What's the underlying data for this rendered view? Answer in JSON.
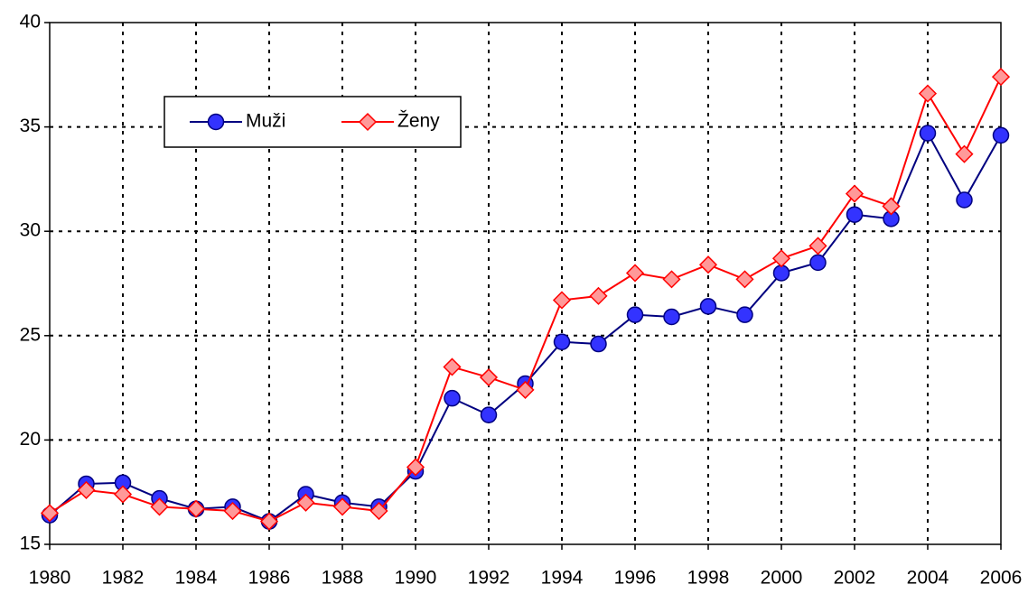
{
  "chart_data": {
    "type": "line",
    "x": [
      1980,
      1981,
      1982,
      1983,
      1984,
      1985,
      1986,
      1987,
      1988,
      1989,
      1990,
      1991,
      1992,
      1993,
      1994,
      1995,
      1996,
      1997,
      1998,
      1999,
      2000,
      2001,
      2002,
      2003,
      2004,
      2005,
      2006
    ],
    "series": [
      {
        "name": "Muži",
        "color": "#000080",
        "marker_color": "#3333ff",
        "marker": "circle",
        "values": [
          16.4,
          17.9,
          17.95,
          17.2,
          16.7,
          16.8,
          16.1,
          17.4,
          17.0,
          16.8,
          18.5,
          22.0,
          21.2,
          22.7,
          24.7,
          24.6,
          26.0,
          25.9,
          26.4,
          26.0,
          28.0,
          28.5,
          30.8,
          30.6,
          34.7,
          31.5,
          34.6
        ]
      },
      {
        "name": "Ženy",
        "color": "#ff0000",
        "marker_color": "#ff9999",
        "marker": "diamond",
        "values": [
          16.5,
          17.6,
          17.4,
          16.8,
          16.7,
          16.6,
          16.1,
          17.0,
          16.8,
          16.6,
          18.7,
          23.5,
          23.0,
          22.4,
          26.7,
          26.9,
          28.0,
          27.7,
          28.4,
          27.7,
          28.7,
          29.3,
          31.8,
          31.2,
          36.6,
          33.7,
          37.4
        ]
      }
    ],
    "xlim": [
      1980,
      2006
    ],
    "xticks": [
      1980,
      1982,
      1984,
      1986,
      1988,
      1990,
      1992,
      1994,
      1996,
      1998,
      2000,
      2002,
      2004,
      2006
    ],
    "ylim": [
      15,
      40
    ],
    "yticks": [
      15,
      20,
      25,
      30,
      35,
      40
    ],
    "grid": true,
    "legend": "upper left"
  }
}
